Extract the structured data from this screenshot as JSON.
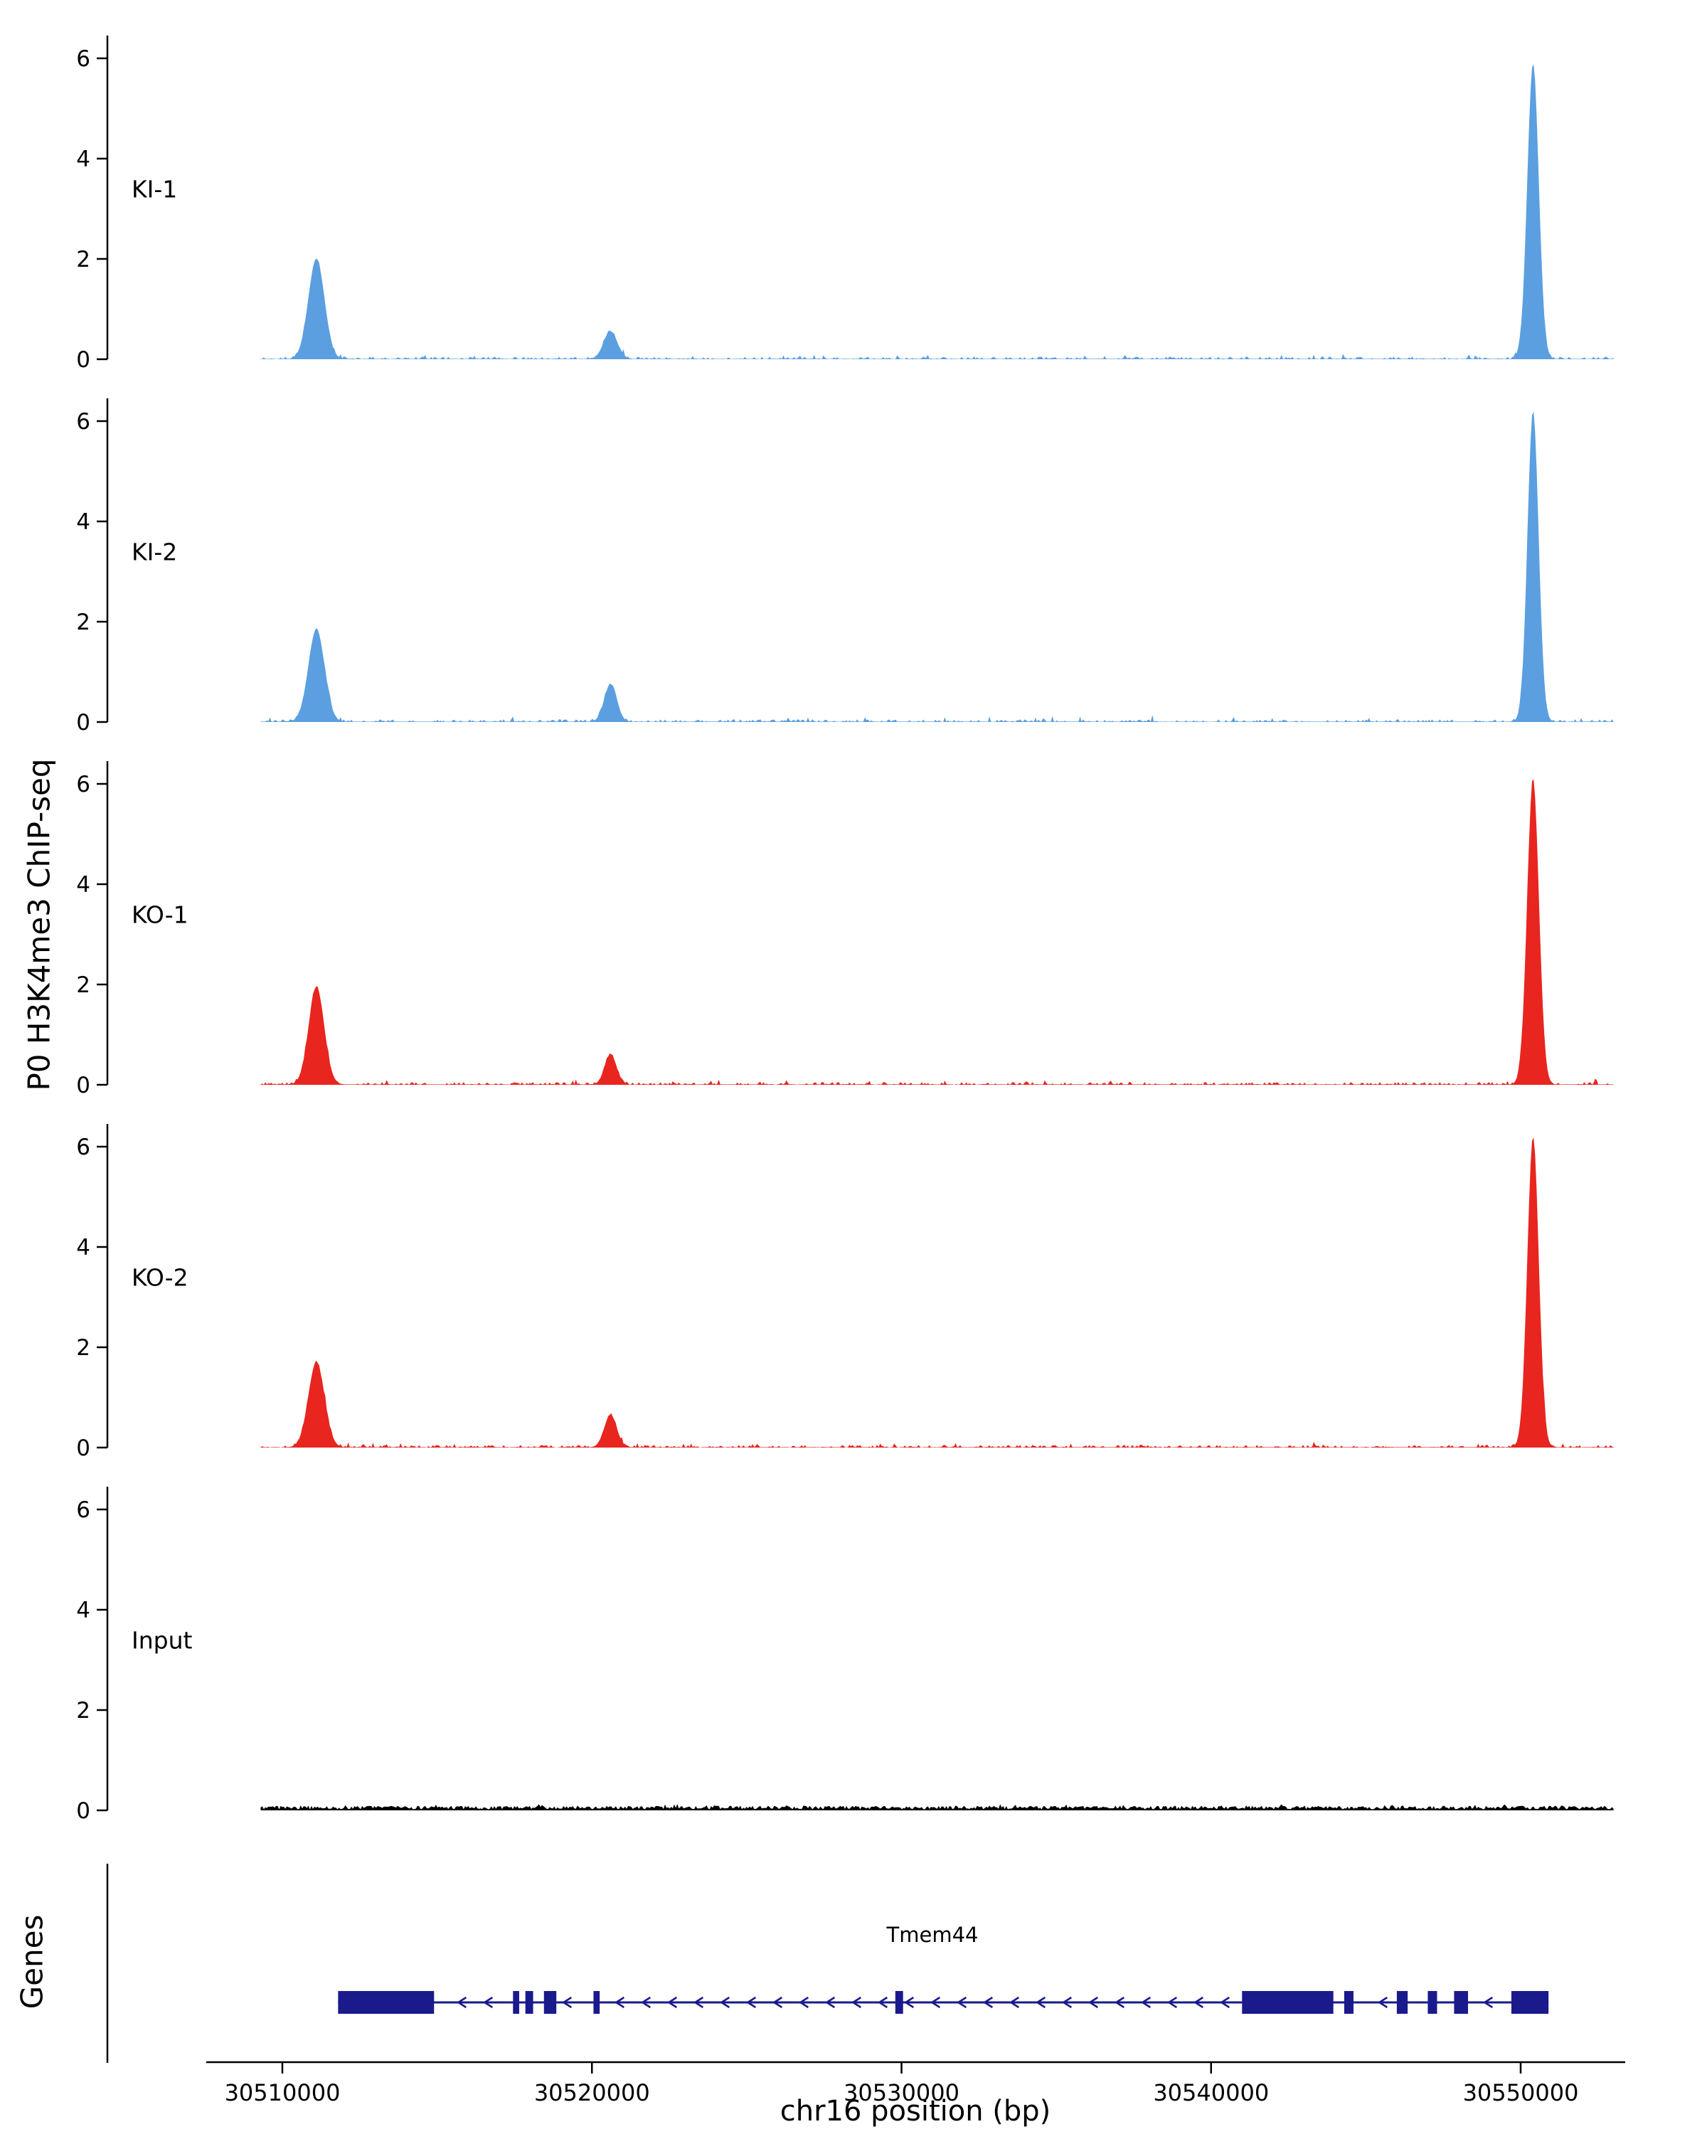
{
  "chart_data": {
    "type": "area",
    "title": "",
    "ylabel": "P0 H3K4me3 ChIP-seq",
    "xlabel": "chr16 position (bp)",
    "x_domain": [
      30509300,
      30553000
    ],
    "x_ticks": [
      30510000,
      30520000,
      30530000,
      30540000,
      30550000
    ],
    "x_tick_labels": [
      "30510000",
      "30520000",
      "30530000",
      "30540000",
      "30550000"
    ],
    "y_ticks": [
      0,
      2,
      4,
      6
    ],
    "y_tick_labels": [
      "0",
      "2",
      "4",
      "6"
    ],
    "y_max": 6.6,
    "grid": "off",
    "legend": "none",
    "tracks": [
      {
        "name": "KI-1",
        "color": "#5B9FE0",
        "seed": 11,
        "noise": 0.06,
        "peaks": [
          {
            "center": 30511100,
            "height": 2.0,
            "sigma": 260
          },
          {
            "center": 30520600,
            "height": 0.55,
            "sigma": 220
          },
          {
            "center": 30550400,
            "height": 5.9,
            "sigma": 185
          }
        ]
      },
      {
        "name": "KI-2",
        "color": "#5B9FE0",
        "seed": 23,
        "noise": 0.06,
        "peaks": [
          {
            "center": 30511100,
            "height": 1.85,
            "sigma": 260
          },
          {
            "center": 30520600,
            "height": 0.75,
            "sigma": 200
          },
          {
            "center": 30550400,
            "height": 6.2,
            "sigma": 180
          }
        ]
      },
      {
        "name": "KO-1",
        "color": "#E8251F",
        "seed": 37,
        "noise": 0.06,
        "peaks": [
          {
            "center": 30511100,
            "height": 1.95,
            "sigma": 250
          },
          {
            "center": 30520600,
            "height": 0.6,
            "sigma": 190
          },
          {
            "center": 30550400,
            "height": 6.1,
            "sigma": 190
          }
        ]
      },
      {
        "name": "KO-2",
        "color": "#E8251F",
        "seed": 49,
        "noise": 0.06,
        "peaks": [
          {
            "center": 30511100,
            "height": 1.7,
            "sigma": 260
          },
          {
            "center": 30520600,
            "height": 0.65,
            "sigma": 200
          },
          {
            "center": 30550400,
            "height": 6.2,
            "sigma": 185
          }
        ]
      },
      {
        "name": "Input",
        "color": "#000000",
        "seed": 61,
        "noise": 0.07,
        "peaks": []
      }
    ],
    "gene_track": {
      "label": "Genes",
      "gene": {
        "name": "Tmem44",
        "strand": "-",
        "start": 30511800,
        "end": 30550900,
        "color": "#1A1A8C",
        "exons": [
          [
            30511800,
            30514900
          ],
          [
            30517450,
            30517650
          ],
          [
            30517850,
            30518100
          ],
          [
            30518450,
            30518850
          ],
          [
            30520050,
            30520250
          ],
          [
            30529800,
            30530050
          ],
          [
            30541000,
            30543950
          ],
          [
            30544300,
            30544600
          ],
          [
            30546000,
            30546350
          ],
          [
            30547000,
            30547300
          ],
          [
            30547850,
            30548300
          ],
          [
            30549700,
            30550900
          ]
        ]
      }
    }
  }
}
